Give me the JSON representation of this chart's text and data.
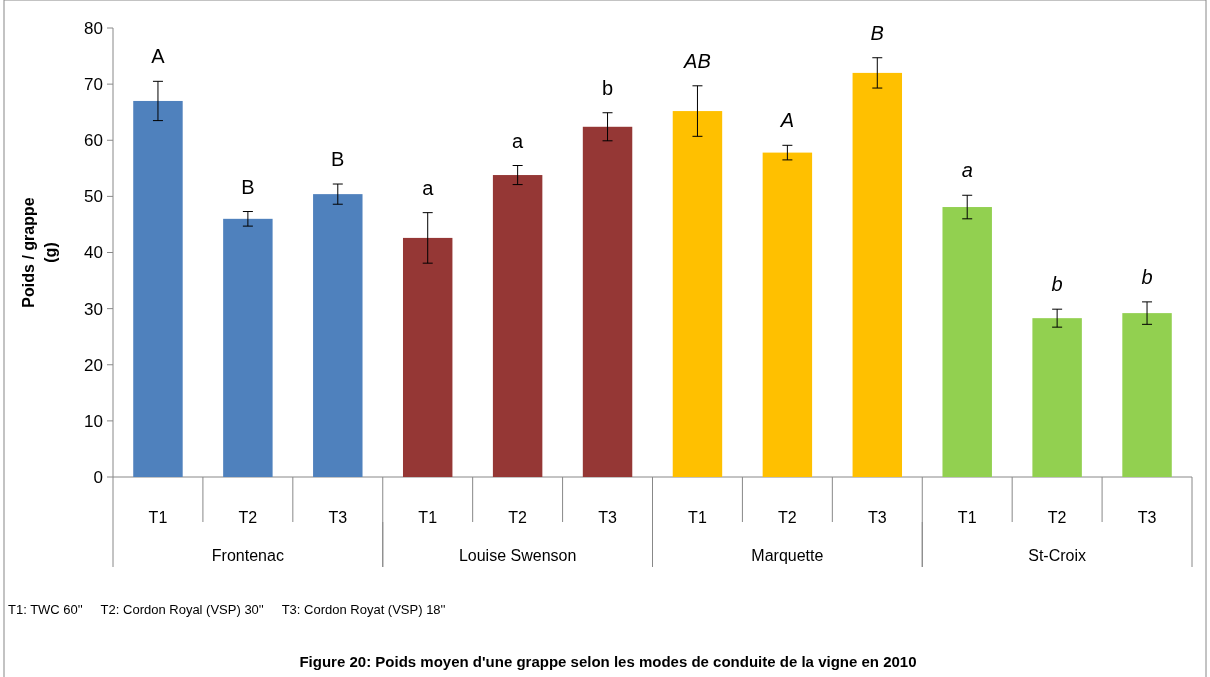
{
  "chart_data": {
    "type": "bar",
    "title": "Figure 20: Poids moyen d'une grappe selon les modes de conduite de la vigne en 2010",
    "ylabel": "Poids / grappe (g)",
    "categories": [
      "T1",
      "T2",
      "T3",
      "T1",
      "T2",
      "T3",
      "T1",
      "T2",
      "T3",
      "T1",
      "T2",
      "T3"
    ],
    "series": [
      {
        "color": "#4f81bd",
        "values": [
          67.0,
          46.0,
          50.4,
          null,
          null,
          null,
          null,
          null,
          null,
          null,
          null,
          null
        ],
        "errors": [
          3.5,
          1.3,
          1.8,
          null,
          null,
          null,
          null,
          null,
          null,
          null,
          null,
          null
        ]
      },
      {
        "color": "#953735",
        "values": [
          null,
          null,
          null,
          42.6,
          53.8,
          62.4,
          null,
          null,
          null,
          null,
          null,
          null
        ],
        "errors": [
          null,
          null,
          null,
          4.5,
          1.7,
          2.5,
          null,
          null,
          null,
          null,
          null,
          null
        ]
      },
      {
        "color": "#ffc000",
        "values": [
          null,
          null,
          null,
          null,
          null,
          null,
          65.2,
          57.8,
          72.0,
          null,
          null,
          null
        ],
        "errors": [
          null,
          null,
          null,
          null,
          null,
          null,
          4.5,
          1.3,
          2.7,
          null,
          null,
          null
        ]
      },
      {
        "color": "#92d050",
        "values": [
          null,
          null,
          null,
          null,
          null,
          null,
          null,
          null,
          null,
          48.1,
          28.3,
          29.2
        ],
        "errors": [
          null,
          null,
          null,
          null,
          null,
          null,
          null,
          null,
          null,
          2.1,
          1.6,
          2.0
        ]
      }
    ],
    "ylim": [
      0,
      80
    ],
    "yticks": [
      0,
      10,
      20,
      30,
      40,
      50,
      60,
      70,
      80
    ],
    "grid": false,
    "annotations": [
      {
        "text": "A",
        "y": 67.0
      },
      {
        "text": "B",
        "y": 46.0
      },
      {
        "text": "B",
        "y": 50.4
      },
      {
        "text": "a",
        "y": 42.6
      },
      {
        "text": "a",
        "y": 53.8
      },
      {
        "text": "b",
        "y": 62.4
      },
      {
        "text": "AB",
        "y": 65.2
      },
      {
        "text": "A",
        "y": 57.8
      },
      {
        "text": "B",
        "y": 72.0
      },
      {
        "text": "a",
        "y": 48.1
      },
      {
        "text": "b",
        "y": 28.3
      },
      {
        "text": "b",
        "y": 29.2
      },
      "Frontenac",
      "Louise Swenson",
      "Marquette",
      "St-Croix",
      "T1: TWC 60''     T2: Cordon Royal (VSP) 30''     T3: Cordon Royat (VSP) 18''"
    ]
  }
}
